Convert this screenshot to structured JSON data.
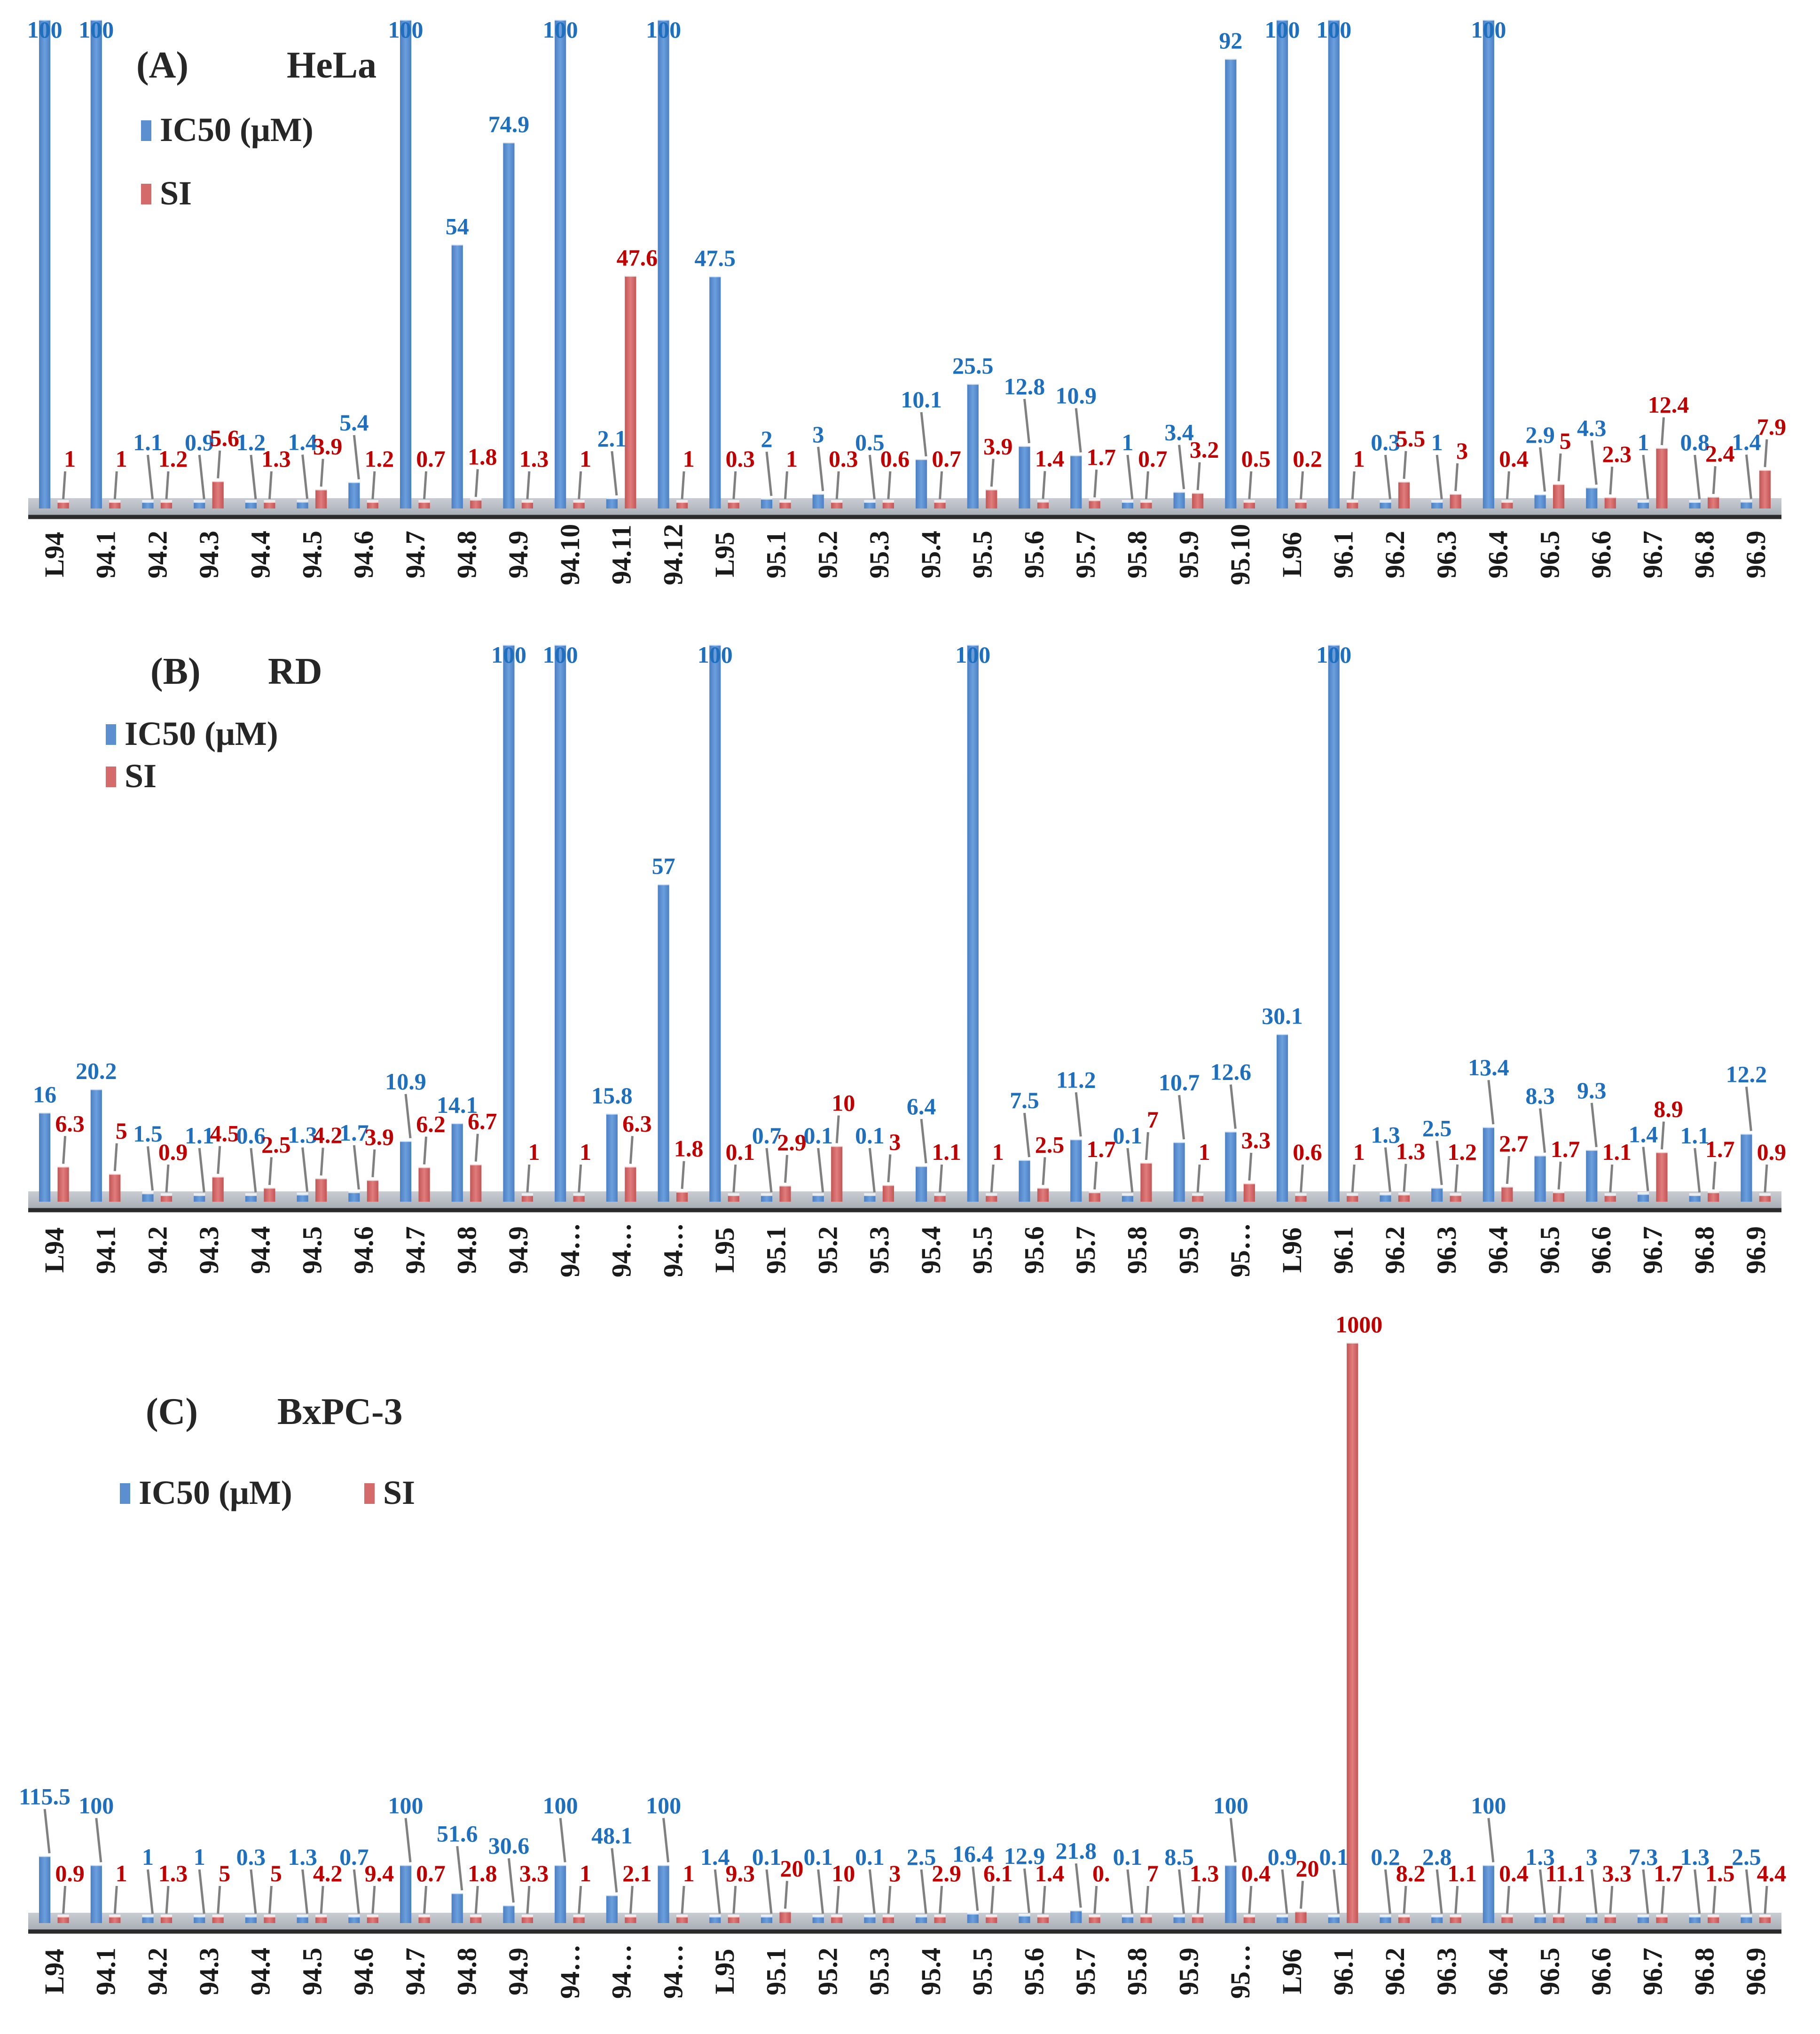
{
  "colors": {
    "ic50": "#5b8fd0",
    "si": "#d46a6a",
    "ic50_label": "#1f6fbf",
    "si_label": "#c00000",
    "axis": "#2b2b2b",
    "floor": "#b7bcc4",
    "leader": "#808080"
  },
  "chart_data": [
    {
      "type": "bar",
      "panel_letter": "(A)",
      "title": "HeLa",
      "legend": [
        "IC50   (μM)",
        "SI"
      ],
      "legend_position": "top-left",
      "categories": [
        "L94",
        "94.1",
        "94.2",
        "94.3",
        "94.4",
        "94.5",
        "94.6",
        "94.7",
        "94.8",
        "94.9",
        "94.10",
        "94.11",
        "94.12",
        "L95",
        "95.1",
        "95.2",
        "95.3",
        "95.4",
        "95.5",
        "95.6",
        "95.7",
        "95.8",
        "95.9",
        "95.10",
        "L96",
        "96.1",
        "96.2",
        "96.3",
        "96.4",
        "96.5",
        "96.6",
        "96.7",
        "96.8",
        "96.9"
      ],
      "series": [
        {
          "name": "IC50   (μM)",
          "values": [
            100,
            100,
            1.1,
            0.9,
            1.2,
            1.4,
            5.4,
            100,
            54,
            74.9,
            100,
            2.1,
            100,
            47.5,
            2,
            3,
            0.5,
            10.1,
            25.5,
            12.8,
            10.9,
            1,
            3.4,
            92,
            100,
            100,
            0.3,
            1,
            100,
            2.9,
            4.3,
            1,
            0.8,
            1.4
          ]
        },
        {
          "name": "SI",
          "values": [
            1,
            1,
            1.2,
            5.6,
            1.3,
            3.9,
            1.2,
            0.7,
            1.8,
            1.3,
            1,
            47.6,
            1,
            0.3,
            1,
            0.3,
            0.6,
            0.7,
            3.9,
            1.4,
            1.7,
            0.7,
            3.2,
            0.5,
            0.2,
            1,
            5.5,
            3,
            0.4,
            5,
            2.3,
            12.4,
            2.4,
            7.9
          ]
        }
      ],
      "ylim": [
        0,
        100
      ],
      "grid": false
    },
    {
      "type": "bar",
      "panel_letter": "(B)",
      "title": "RD",
      "legend": [
        "IC50  (μM)",
        "SI"
      ],
      "legend_position": "top-left",
      "categories": [
        "L94",
        "94.1",
        "94.2",
        "94.3",
        "94.4",
        "94.5",
        "94.6",
        "94.7",
        "94.8",
        "94.9",
        "94…",
        "94…",
        "94…",
        "L95",
        "95.1",
        "95.2",
        "95.3",
        "95.4",
        "95.5",
        "95.6",
        "95.7",
        "95.8",
        "95.9",
        "95…",
        "L96",
        "96.1",
        "96.2",
        "96.3",
        "96.4",
        "96.5",
        "96.6",
        "96.7",
        "96.8",
        "96.9"
      ],
      "series": [
        {
          "name": "IC50  (μM)",
          "values": [
            16,
            20.2,
            1.5,
            1.1,
            0.6,
            1.3,
            1.7,
            10.9,
            14.1,
            100,
            100,
            15.8,
            57,
            100,
            0.7,
            0.1,
            0.1,
            6.4,
            100,
            7.5,
            11.2,
            0.1,
            10.7,
            12.6,
            30.1,
            100,
            1.3,
            2.5,
            13.4,
            8.3,
            9.3,
            1.4,
            1.1,
            12.2
          ]
        },
        {
          "name": "SI",
          "values": [
            6.3,
            5,
            0.9,
            4.5,
            2.5,
            4.2,
            3.9,
            6.2,
            6.7,
            1,
            1,
            6.3,
            1.8,
            0.1,
            2.9,
            10,
            3,
            1.1,
            1,
            2.5,
            1.7,
            7,
            1,
            3.3,
            0.6,
            1,
            1.3,
            1.2,
            2.7,
            1.7,
            1.1,
            8.9,
            1.7,
            0.9
          ]
        }
      ],
      "ylim": [
        0,
        100
      ],
      "grid": false
    },
    {
      "type": "bar",
      "panel_letter": "(C)",
      "title": "BxPC-3",
      "legend": [
        "IC50 (μM)",
        "SI"
      ],
      "legend_position": "top-left",
      "categories": [
        "L94",
        "94.1",
        "94.2",
        "94.3",
        "94.4",
        "94.5",
        "94.6",
        "94.7",
        "94.8",
        "94.9",
        "94…",
        "94…",
        "94…",
        "L95",
        "95.1",
        "95.2",
        "95.3",
        "95.4",
        "95.5",
        "95.6",
        "95.7",
        "95.8",
        "95.9",
        "95…",
        "L96",
        "96.1",
        "96.2",
        "96.3",
        "96.4",
        "96.5",
        "96.6",
        "96.7",
        "96.8",
        "96.9"
      ],
      "series": [
        {
          "name": "IC50 (μM)",
          "values": [
            115.5,
            100,
            1,
            1,
            0.3,
            1.3,
            0.7,
            100,
            51.6,
            30.6,
            100,
            48.1,
            100,
            1.4,
            0.1,
            0.1,
            0.1,
            2.5,
            16.4,
            12.9,
            21.8,
            0.1,
            8.5,
            100,
            0.9,
            0.1,
            0.2,
            2.8,
            100,
            1.3,
            3,
            7.3,
            1.3,
            2.5
          ]
        },
        {
          "name": "SI",
          "values": [
            0.9,
            1,
            1.3,
            5,
            5,
            4.2,
            9.4,
            0.7,
            1.8,
            3.3,
            1,
            2.1,
            1,
            9.3,
            20,
            10,
            3,
            2.9,
            6.1,
            1.4,
            "0.",
            7,
            1.3,
            0.4,
            20,
            1000,
            8.2,
            1.1,
            0.4,
            11.1,
            3.3,
            1.7,
            1.5,
            4.4
          ]
        }
      ],
      "ylim": [
        0,
        1000
      ],
      "grid": false
    }
  ]
}
